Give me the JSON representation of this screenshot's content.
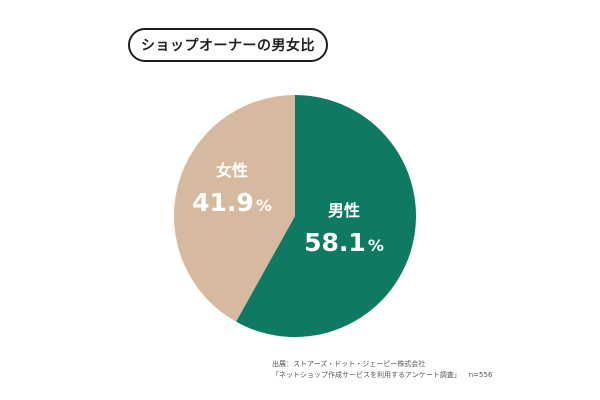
{
  "title": "ショップオーナーの男女比",
  "chart_data": {
    "type": "pie",
    "title": "ショップオーナーの男女比",
    "slices": [
      {
        "label": "男性",
        "value": 58.1,
        "display": "58.1",
        "unit": "%",
        "color": "#0e7a64"
      },
      {
        "label": "女性",
        "value": 41.9,
        "display": "41.9",
        "unit": "%",
        "color": "#d6b99e"
      }
    ],
    "start": "12 o'clock",
    "direction": "clockwise"
  },
  "source": {
    "line1": "出展：ストアーズ・ドット・ジェーピー株式会社",
    "line2": "「ネットショップ作成サービスを利用するアンケート調査」",
    "n": "n=556"
  }
}
